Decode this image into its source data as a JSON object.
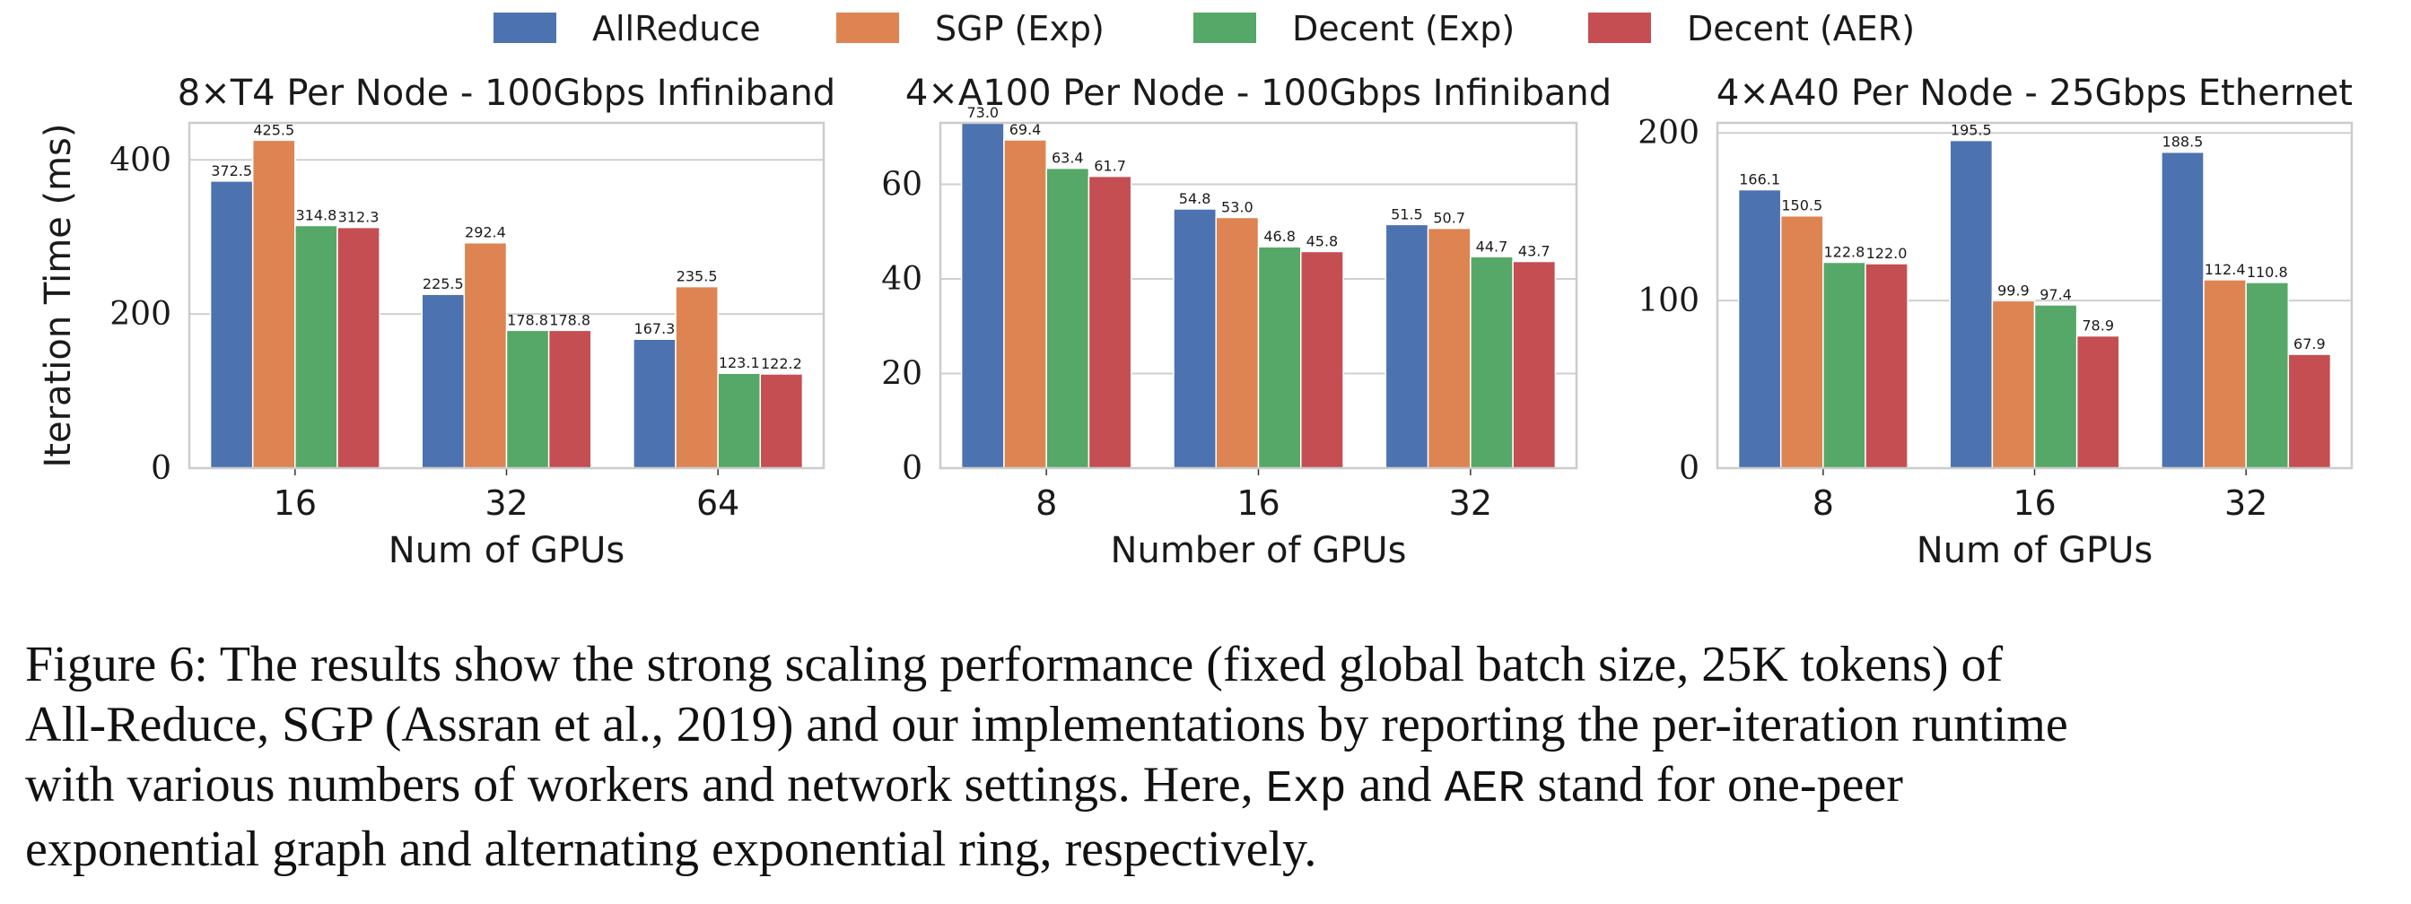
{
  "legend": [
    {
      "name": "AllReduce",
      "color": "#4c72b0"
    },
    {
      "name": "SGP (Exp)",
      "color": "#dd8452"
    },
    {
      "name": "Decent (Exp)",
      "color": "#55a868"
    },
    {
      "name": "Decent (AER)",
      "color": "#c44e52"
    }
  ],
  "chart_data": [
    {
      "type": "bar",
      "title": "8×T4 Per Node - 100Gbps Infiniband",
      "xlabel": "Num of GPUs",
      "ylabel": "Iteration Time (ms)",
      "categories": [
        "16",
        "32",
        "64"
      ],
      "ylim": [
        0,
        448
      ],
      "yticks": [
        0,
        200,
        400
      ],
      "grid": true,
      "series": [
        {
          "name": "AllReduce",
          "values": [
            372.5,
            225.5,
            167.3
          ]
        },
        {
          "name": "SGP (Exp)",
          "values": [
            425.5,
            292.4,
            235.5
          ]
        },
        {
          "name": "Decent (Exp)",
          "values": [
            314.8,
            178.8,
            123.1
          ]
        },
        {
          "name": "Decent (AER)",
          "values": [
            312.3,
            178.8,
            122.2
          ]
        }
      ]
    },
    {
      "type": "bar",
      "title": "4×A100 Per Node - 100Gbps Infiniband",
      "xlabel": "Number of GPUs",
      "ylabel": "",
      "categories": [
        "8",
        "16",
        "32"
      ],
      "ylim": [
        0,
        73.0
      ],
      "yticks": [
        0,
        20,
        40,
        60
      ],
      "grid": true,
      "series": [
        {
          "name": "AllReduce",
          "values": [
            73.0,
            54.8,
            51.5
          ]
        },
        {
          "name": "SGP (Exp)",
          "values": [
            69.4,
            53.0,
            50.7
          ]
        },
        {
          "name": "Decent (Exp)",
          "values": [
            63.4,
            46.8,
            44.7
          ]
        },
        {
          "name": "Decent (AER)",
          "values": [
            61.7,
            45.8,
            43.7
          ]
        }
      ]
    },
    {
      "type": "bar",
      "title": "4×A40 Per Node - 25Gbps Ethernet",
      "xlabel": "Num of GPUs",
      "ylabel": "",
      "categories": [
        "8",
        "16",
        "32"
      ],
      "ylim": [
        0,
        206
      ],
      "yticks": [
        0,
        100,
        200
      ],
      "grid": true,
      "series": [
        {
          "name": "AllReduce",
          "values": [
            166.1,
            195.5,
            188.5
          ]
        },
        {
          "name": "SGP (Exp)",
          "values": [
            150.5,
            99.9,
            112.4
          ]
        },
        {
          "name": "Decent (Exp)",
          "values": [
            122.8,
            97.4,
            110.8
          ]
        },
        {
          "name": "Decent (AER)",
          "values": [
            122.0,
            78.9,
            67.9
          ]
        }
      ]
    }
  ],
  "caption": {
    "line1": "Figure 6: The results show the strong scaling performance (fixed global batch size, 25K tokens) of",
    "line2": "All-Reduce, SGP (Assran et al., 2019) and our implementations by reporting the per-iteration runtime",
    "line3_a": "with various numbers of workers and network settings.  Here,",
    "line3_code1": "Exp",
    "line3_b": "and",
    "line3_code2": "AER",
    "line3_c": "stand for one-peer",
    "line4": "exponential graph and alternating exponential ring, respectively."
  }
}
